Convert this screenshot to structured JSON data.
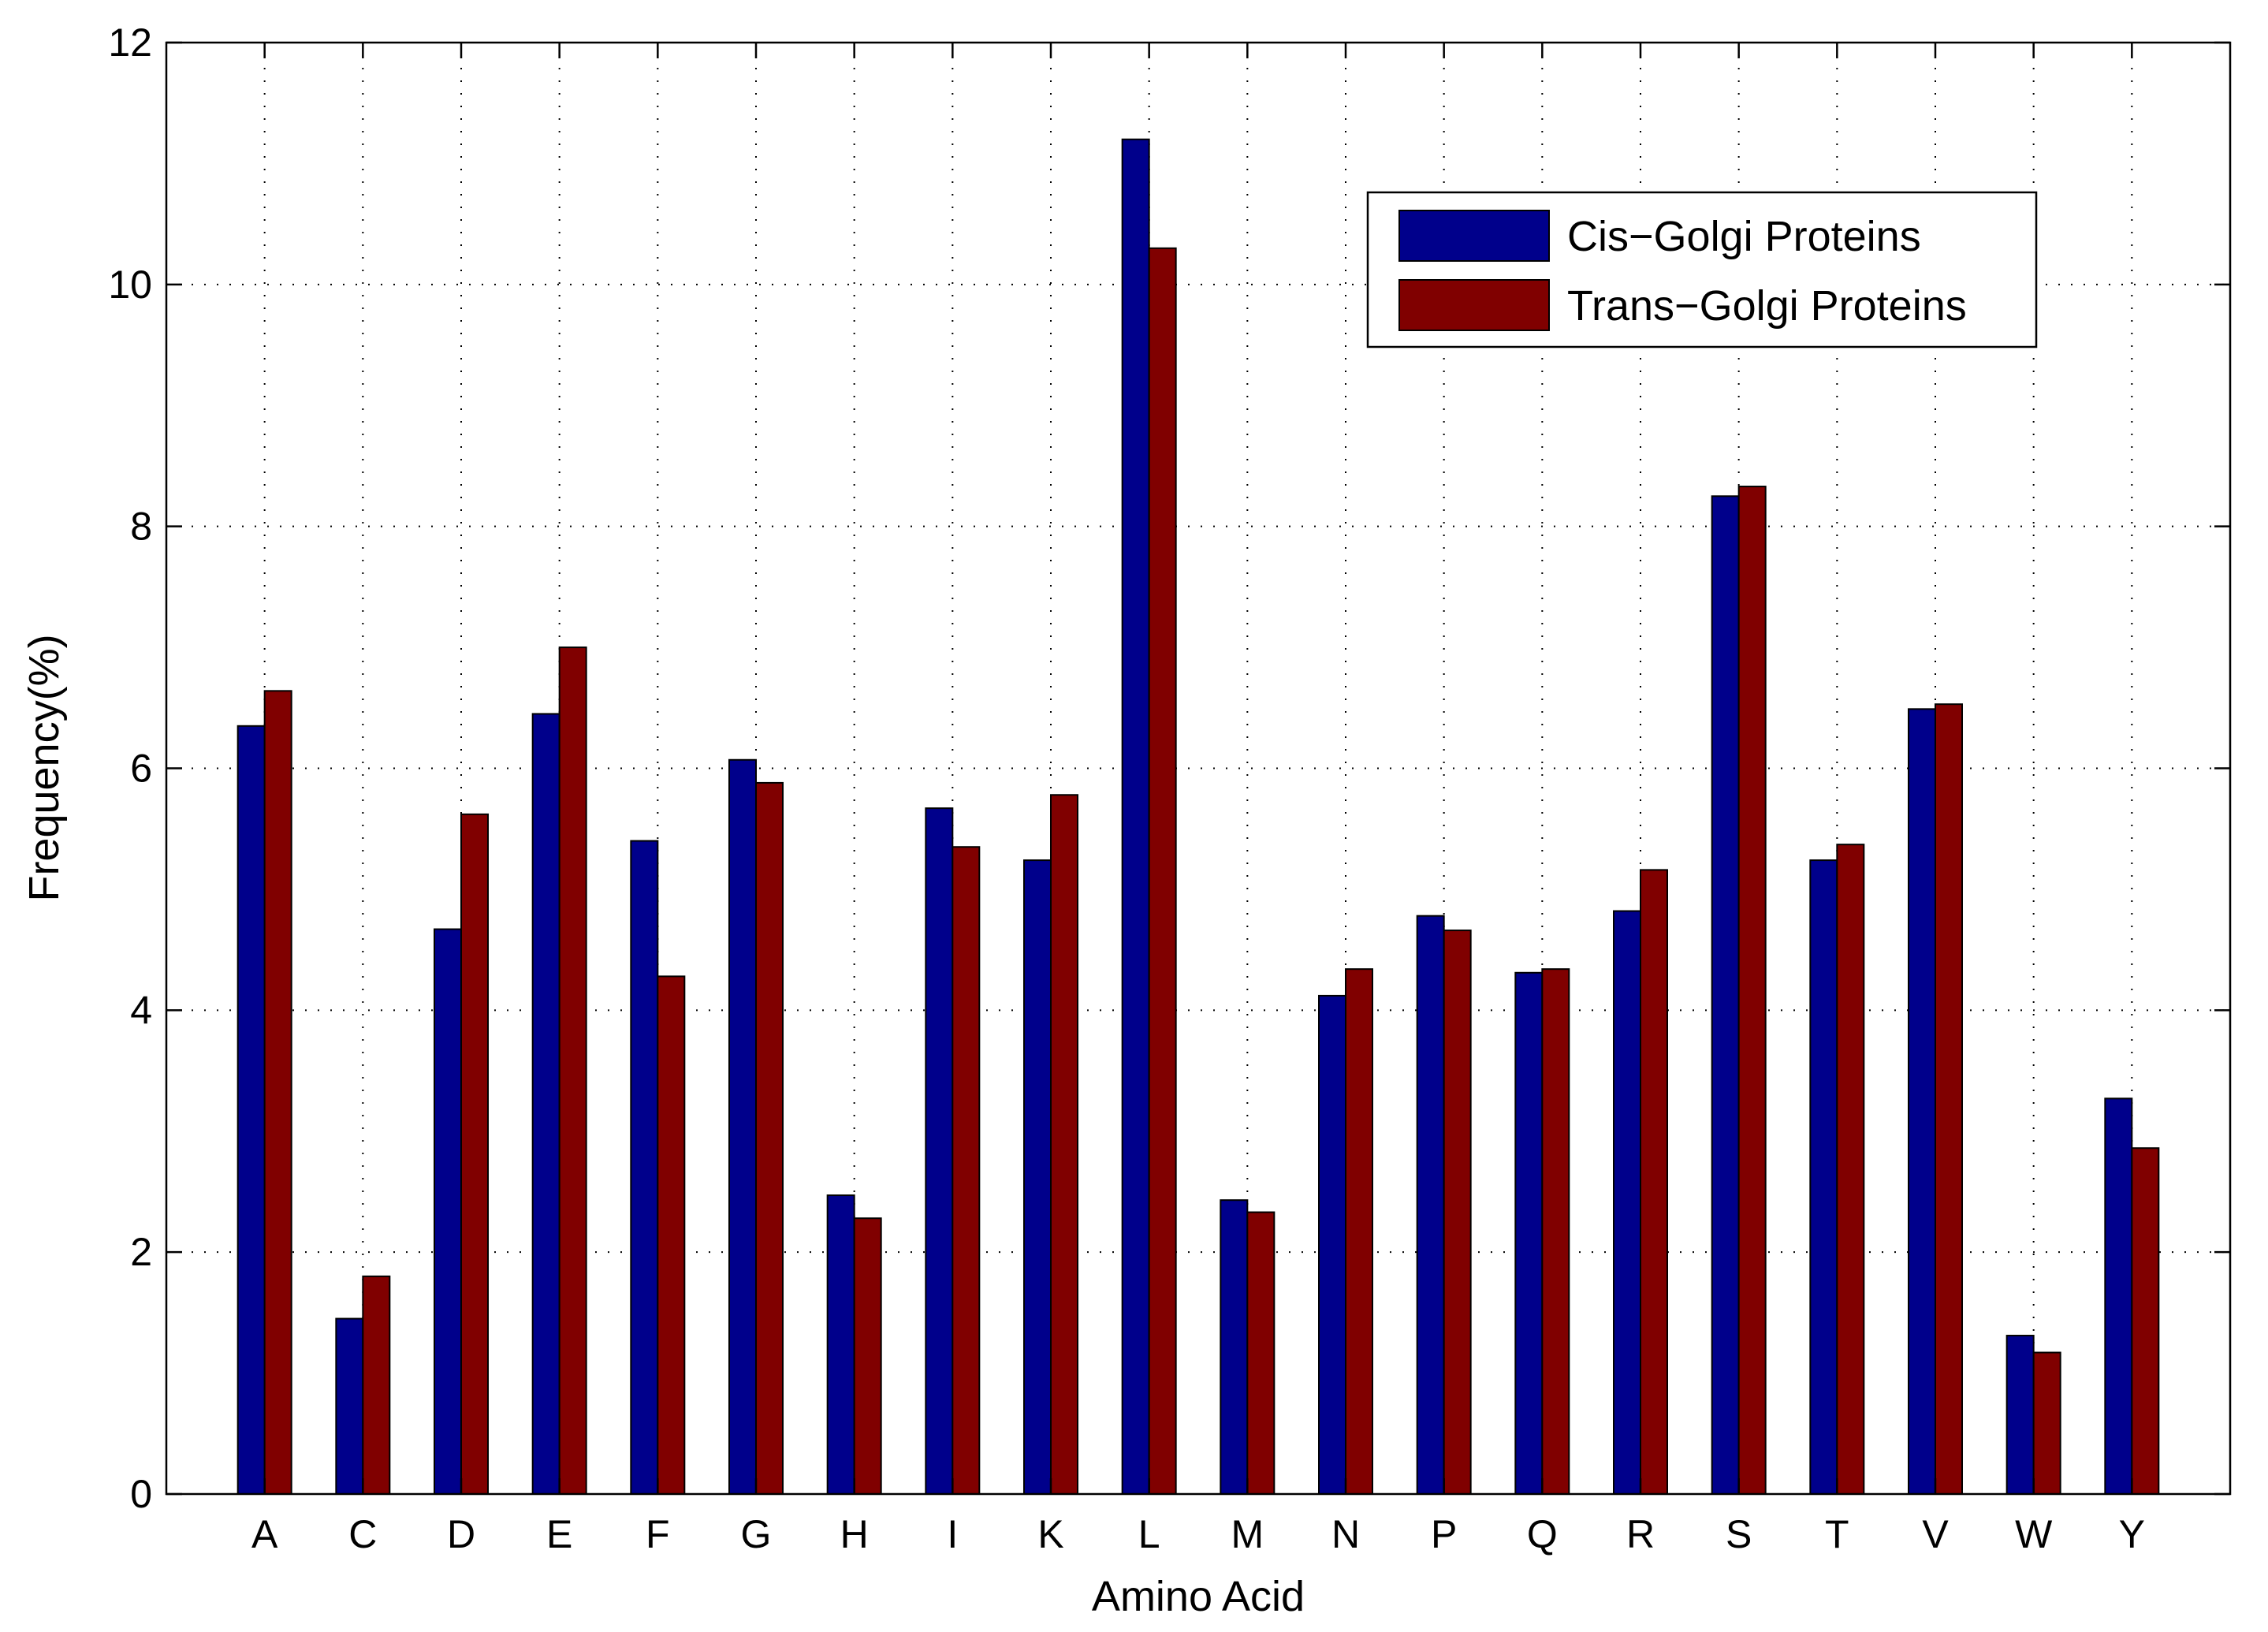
{
  "chart_data": {
    "type": "bar",
    "title": "",
    "xlabel": "Amino Acid",
    "ylabel": "Frequency(%)",
    "ylim": [
      0,
      12
    ],
    "yticks": [
      0,
      2,
      4,
      6,
      8,
      10,
      12
    ],
    "grid": true,
    "legend_position": "top-right",
    "categories": [
      "A",
      "C",
      "D",
      "E",
      "F",
      "G",
      "H",
      "I",
      "K",
      "L",
      "M",
      "N",
      "P",
      "Q",
      "R",
      "S",
      "T",
      "V",
      "W",
      "Y"
    ],
    "series": [
      {
        "name": "Cis−Golgi Proteins",
        "color": "#00008b",
        "values": [
          6.35,
          1.45,
          4.67,
          6.45,
          5.4,
          6.07,
          2.47,
          5.67,
          5.24,
          11.2,
          2.43,
          4.12,
          4.78,
          4.31,
          4.82,
          8.25,
          5.24,
          6.49,
          1.31,
          3.27
        ]
      },
      {
        "name": "Trans−Golgi Proteins",
        "color": "#800000",
        "values": [
          6.64,
          1.8,
          5.62,
          7.0,
          4.28,
          5.88,
          2.28,
          5.35,
          5.78,
          10.3,
          2.33,
          4.34,
          4.66,
          4.34,
          5.16,
          8.33,
          5.37,
          6.53,
          1.17,
          2.86
        ]
      }
    ]
  }
}
